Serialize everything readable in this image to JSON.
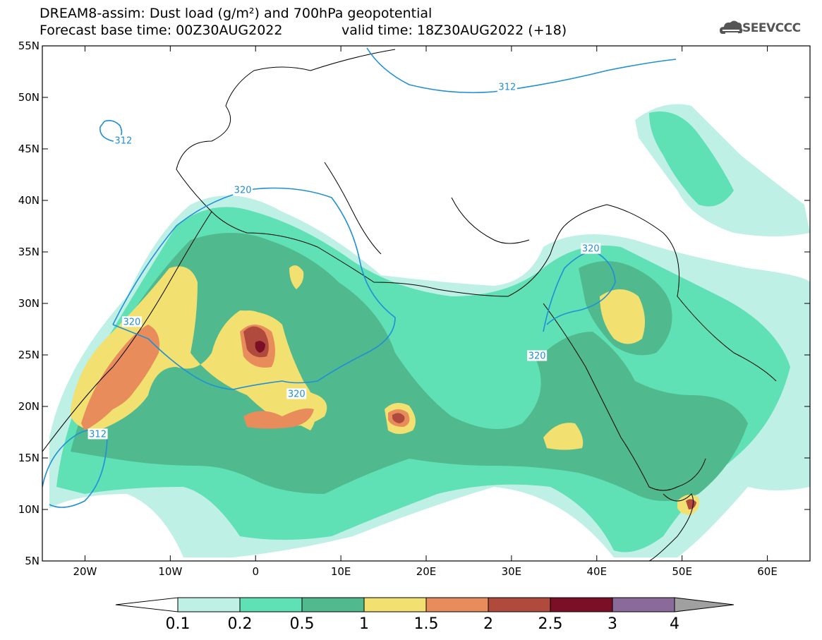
{
  "header": {
    "title_line_1": "DREAM8-assim: Dust load (g/m²) and 700hPa geopotential",
    "title_line_2": "Forecast base time: 00Z30AUG2022",
    "valid_time": "valid time: 18Z30AUG2022 (+18)"
  },
  "logo": {
    "text": "SEEVCCC",
    "icon": "cloud-icon"
  },
  "map": {
    "projection": "equirectangular",
    "lon_range": [
      -25,
      65
    ],
    "lat_range": [
      5,
      55
    ],
    "lon_ticks": [
      {
        "value": -20,
        "label": "20W"
      },
      {
        "value": -10,
        "label": "10W"
      },
      {
        "value": 0,
        "label": "0"
      },
      {
        "value": 10,
        "label": "10E"
      },
      {
        "value": 20,
        "label": "20E"
      },
      {
        "value": 30,
        "label": "30E"
      },
      {
        "value": 40,
        "label": "40E"
      },
      {
        "value": 50,
        "label": "50E"
      },
      {
        "value": 60,
        "label": "60E"
      }
    ],
    "lat_ticks": [
      {
        "value": 55,
        "label": "55N"
      },
      {
        "value": 50,
        "label": "50N"
      },
      {
        "value": 45,
        "label": "45N"
      },
      {
        "value": 40,
        "label": "40N"
      },
      {
        "value": 35,
        "label": "35N"
      },
      {
        "value": 30,
        "label": "30N"
      },
      {
        "value": 25,
        "label": "25N"
      },
      {
        "value": 20,
        "label": "20N"
      },
      {
        "value": 15,
        "label": "15N"
      },
      {
        "value": 10,
        "label": "10N"
      },
      {
        "value": 5,
        "label": "5N"
      }
    ],
    "geopotential_contour_labels": [
      {
        "text": "312",
        "lon": -15.5,
        "lat": 45.8
      },
      {
        "text": "312",
        "lon": 29.5,
        "lat": 51.0
      },
      {
        "text": "312",
        "lon": -18.5,
        "lat": 17.3
      },
      {
        "text": "320",
        "lon": -1.5,
        "lat": 41.0
      },
      {
        "text": "320",
        "lon": -14.5,
        "lat": 28.2
      },
      {
        "text": "320",
        "lon": 4.8,
        "lat": 21.2
      },
      {
        "text": "320",
        "lon": 39.3,
        "lat": 35.3
      },
      {
        "text": "320",
        "lon": 33.0,
        "lat": 24.9
      }
    ],
    "contour_color": "#1f8fd6"
  },
  "colorbar": {
    "labels": [
      "0.1",
      "0.2",
      "0.5",
      "1",
      "1.5",
      "2",
      "2.5",
      "3",
      "4"
    ],
    "colors": [
      "#bff0e6",
      "#5fe0b5",
      "#50b98e",
      "#f2e070",
      "#e88c5c",
      "#b04a3c",
      "#7a0f25",
      "#8a6a9a"
    ],
    "end_colors": {
      "low": "#ffffff",
      "high": "#a0a0a0"
    }
  }
}
